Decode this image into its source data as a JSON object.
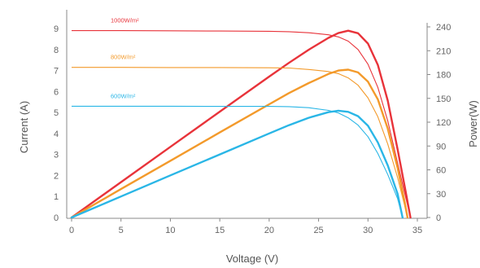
{
  "chart_data": {
    "type": "line",
    "xlabel": "Voltage (V)",
    "ylabel_left": "Current (A)",
    "ylabel_right": "Power(W)",
    "x_ticks": [
      "0",
      "5",
      "10",
      "15",
      "20",
      "25",
      "30",
      "35"
    ],
    "y_left_ticks": [
      "0",
      "1",
      "2",
      "3",
      "4",
      "5",
      "6",
      "7",
      "8",
      "9"
    ],
    "y_right_ticks": [
      "0",
      "30",
      "60",
      "90",
      "120",
      "150",
      "180",
      "210",
      "240"
    ],
    "xlim": [
      0,
      35
    ],
    "ylim_left": [
      0,
      9.5
    ],
    "ylim_right": [
      0,
      250
    ],
    "grid": false,
    "series": [
      {
        "name": "1000W/m²",
        "color": "#e8333a",
        "iv": [
          [
            0,
            8.9
          ],
          [
            5,
            8.9
          ],
          [
            10,
            8.89
          ],
          [
            15,
            8.88
          ],
          [
            20,
            8.87
          ],
          [
            22,
            8.85
          ],
          [
            24,
            8.8
          ],
          [
            26,
            8.7
          ],
          [
            27,
            8.6
          ],
          [
            28,
            8.4
          ],
          [
            29,
            8.0
          ],
          [
            30,
            7.3
          ],
          [
            31,
            6.2
          ],
          [
            32,
            4.6
          ],
          [
            33,
            2.6
          ],
          [
            33.8,
            1.0
          ],
          [
            34.3,
            0
          ]
        ],
        "pv": [
          [
            0,
            0
          ],
          [
            5,
            44.5
          ],
          [
            10,
            88.9
          ],
          [
            15,
            133.2
          ],
          [
            20,
            177.4
          ],
          [
            22,
            194.7
          ],
          [
            24,
            211.2
          ],
          [
            26,
            226.2
          ],
          [
            27,
            232.2
          ],
          [
            28,
            235.2
          ],
          [
            29,
            232.0
          ],
          [
            30,
            219.0
          ],
          [
            31,
            192.2
          ],
          [
            32,
            147.2
          ],
          [
            33,
            85.8
          ],
          [
            33.8,
            33.8
          ],
          [
            34.3,
            0
          ]
        ]
      },
      {
        "name": "800W/m²",
        "color": "#f39a2b",
        "iv": [
          [
            0,
            7.15
          ],
          [
            5,
            7.15
          ],
          [
            10,
            7.14
          ],
          [
            15,
            7.14
          ],
          [
            20,
            7.13
          ],
          [
            22,
            7.12
          ],
          [
            24,
            7.05
          ],
          [
            26,
            6.95
          ],
          [
            27,
            6.85
          ],
          [
            28,
            6.65
          ],
          [
            29,
            6.3
          ],
          [
            30,
            5.7
          ],
          [
            31,
            4.8
          ],
          [
            32,
            3.5
          ],
          [
            33,
            1.9
          ],
          [
            33.7,
            0.6
          ],
          [
            34.0,
            0
          ]
        ],
        "pv": [
          [
            0,
            0
          ],
          [
            5,
            35.8
          ],
          [
            10,
            71.4
          ],
          [
            15,
            107.1
          ],
          [
            20,
            142.6
          ],
          [
            22,
            156.6
          ],
          [
            24,
            169.2
          ],
          [
            26,
            180.7
          ],
          [
            27,
            185.0
          ],
          [
            28,
            186.2
          ],
          [
            29,
            182.7
          ],
          [
            30,
            171.0
          ],
          [
            31,
            148.8
          ],
          [
            32,
            112.0
          ],
          [
            33,
            62.7
          ],
          [
            33.7,
            20.2
          ],
          [
            34.0,
            0
          ]
        ]
      },
      {
        "name": "600W/m²",
        "color": "#2ab6e6",
        "iv": [
          [
            0,
            5.3
          ],
          [
            5,
            5.3
          ],
          [
            10,
            5.3
          ],
          [
            15,
            5.29
          ],
          [
            20,
            5.29
          ],
          [
            22,
            5.28
          ],
          [
            24,
            5.23
          ],
          [
            26,
            5.1
          ],
          [
            27,
            4.98
          ],
          [
            28,
            4.75
          ],
          [
            29,
            4.4
          ],
          [
            30,
            3.85
          ],
          [
            31,
            3.05
          ],
          [
            32,
            2.05
          ],
          [
            33,
            0.9
          ],
          [
            33.5,
            0
          ]
        ],
        "pv": [
          [
            0,
            0
          ],
          [
            5,
            26.5
          ],
          [
            10,
            53.0
          ],
          [
            15,
            79.4
          ],
          [
            20,
            105.8
          ],
          [
            22,
            116.2
          ],
          [
            24,
            125.5
          ],
          [
            26,
            132.6
          ],
          [
            27,
            134.5
          ],
          [
            28,
            133.0
          ],
          [
            29,
            127.6
          ],
          [
            30,
            115.5
          ],
          [
            31,
            94.6
          ],
          [
            32,
            65.6
          ],
          [
            33,
            29.7
          ],
          [
            33.5,
            0
          ]
        ]
      }
    ]
  }
}
